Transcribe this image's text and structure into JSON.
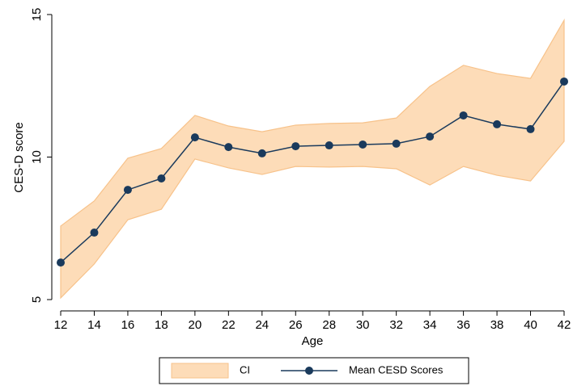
{
  "chart_data": {
    "type": "line",
    "y_label": "CES-D score",
    "x_label": "Age",
    "x": [
      12,
      14,
      16,
      18,
      20,
      22,
      24,
      26,
      28,
      30,
      32,
      34,
      36,
      38,
      40,
      42
    ],
    "series": [
      {
        "name": "CI",
        "color": "#fddcb8",
        "edge_color": "#f7c28a",
        "upper": [
          7.58,
          8.46,
          9.96,
          10.3,
          11.46,
          11.09,
          10.89,
          11.12,
          11.18,
          11.2,
          11.37,
          12.48,
          13.22,
          12.93,
          12.76,
          14.8
        ],
        "lower": [
          5.06,
          6.25,
          7.8,
          8.17,
          9.93,
          9.62,
          9.39,
          9.67,
          9.65,
          9.67,
          9.59,
          9.02,
          9.67,
          9.36,
          9.16,
          10.55
        ]
      },
      {
        "name": "Mean CESD Scores",
        "color": "#1a3a5c",
        "values": [
          6.3,
          7.35,
          8.85,
          9.25,
          10.69,
          10.35,
          10.13,
          10.38,
          10.41,
          10.44,
          10.47,
          10.72,
          11.46,
          11.15,
          10.98,
          12.65
        ]
      }
    ],
    "xlim": [
      12,
      42
    ],
    "xticks": [
      12,
      14,
      16,
      18,
      20,
      22,
      24,
      26,
      28,
      30,
      32,
      34,
      36,
      38,
      40,
      42
    ],
    "ylim": [
      5,
      15
    ],
    "yticks": [
      5,
      10,
      15
    ],
    "legend": "bottom"
  }
}
